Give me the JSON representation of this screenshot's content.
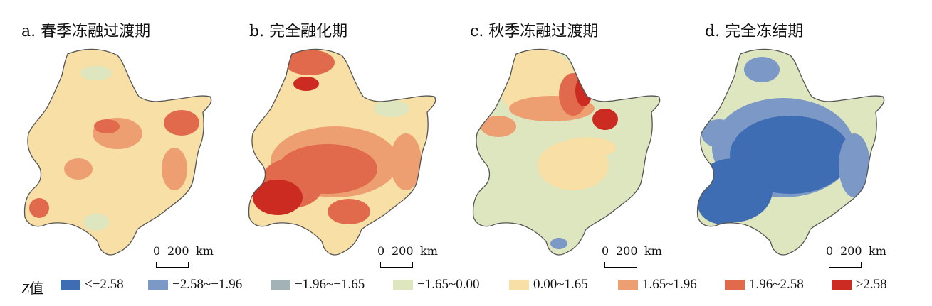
{
  "panels": [
    {
      "title": "a. 春季冻融过渡期",
      "scalebar": {
        "zero": "0",
        "dist": "200",
        "unit": "km"
      }
    },
    {
      "title": "b. 完全融化期",
      "scalebar": {
        "zero": "0",
        "dist": "200",
        "unit": "km"
      }
    },
    {
      "title": "c. 秋季冻融过渡期",
      "scalebar": {
        "zero": "0",
        "dist": "200",
        "unit": "km"
      }
    },
    {
      "title": "d. 完全冻结期",
      "scalebar": {
        "zero": "0",
        "dist": "200",
        "unit": "km"
      }
    }
  ],
  "legend": {
    "title_italic": "Z",
    "title_suffix": "值",
    "items": [
      {
        "label": "<−2.58",
        "color": "#3f6db3"
      },
      {
        "label": "−2.58~−1.96",
        "color": "#7b98c6"
      },
      {
        "label": "−1.96~−1.65",
        "color": "#a3b2b5"
      },
      {
        "label": "−1.65~0.00",
        "color": "#dde6be"
      },
      {
        "label": "0.00~1.65",
        "color": "#f7dfa6"
      },
      {
        "label": "1.65~1.96",
        "color": "#ee9f72"
      },
      {
        "label": "1.96~2.58",
        "color": "#e06a4b"
      },
      {
        "label": "≥2.58",
        "color": "#cc2b22"
      }
    ]
  }
}
